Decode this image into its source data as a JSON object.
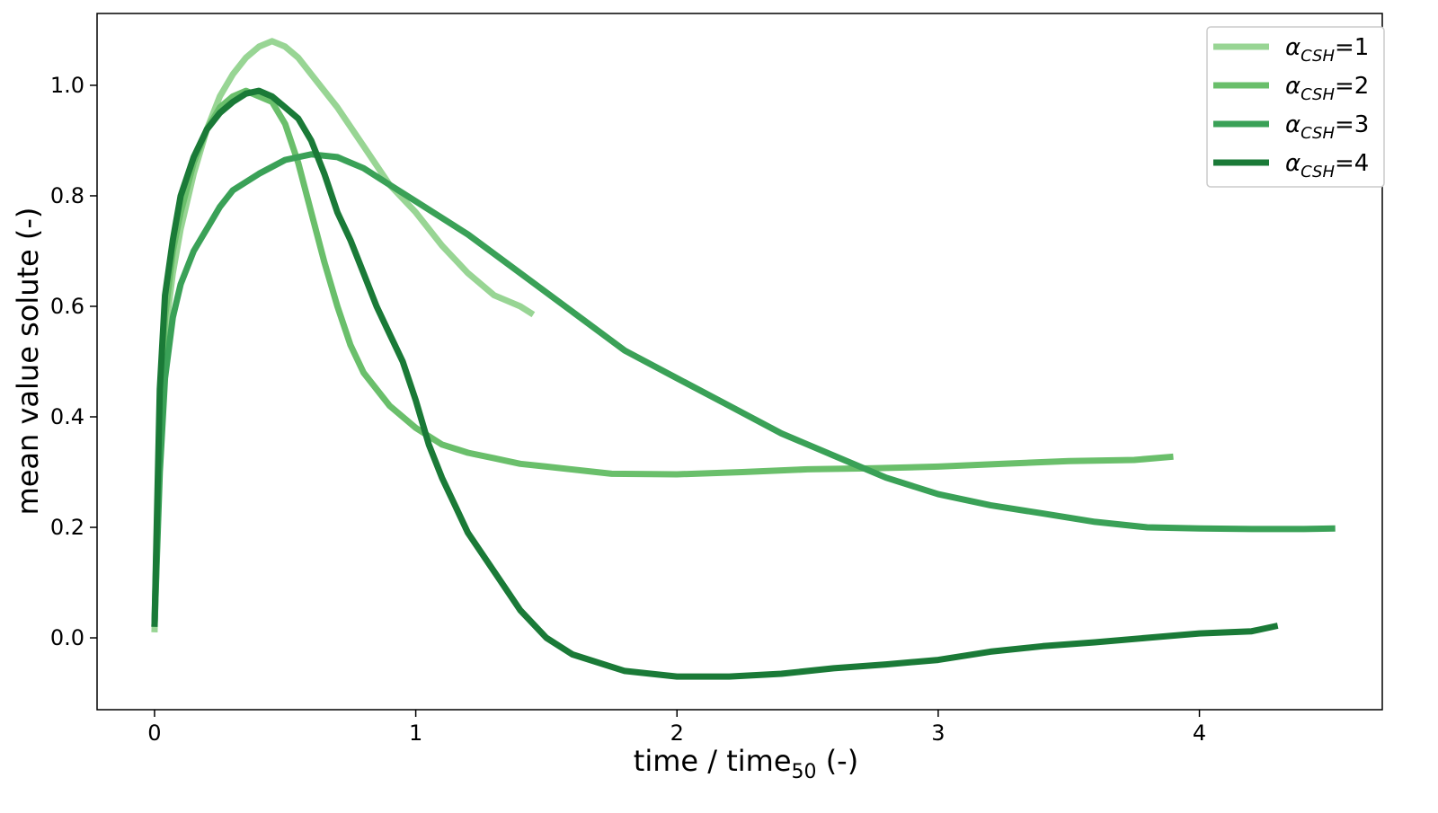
{
  "chart_data": {
    "type": "line",
    "xlabel": "time / time",
    "xlabel_subscript": "50",
    "xlabel_suffix": " (-)",
    "ylabel": "mean value solute (-)",
    "xlim": [
      -0.22,
      4.7
    ],
    "ylim": [
      -0.13,
      1.13
    ],
    "xticks": [
      0,
      1,
      2,
      3,
      4
    ],
    "yticks": [
      0.0,
      0.2,
      0.4,
      0.6,
      0.8,
      1.0
    ],
    "xtick_labels": [
      "0",
      "1",
      "2",
      "3",
      "4"
    ],
    "ytick_labels": [
      "0.0",
      "0.2",
      "0.4",
      "0.6",
      "0.8",
      "1.0"
    ],
    "grid": false,
    "legend_position": "top-right",
    "series": [
      {
        "name": "α_CSH=1",
        "label_base": "α",
        "label_sub": "CSH",
        "label_rest": "=1",
        "color": "#98d594",
        "x": [
          0.0,
          0.02,
          0.04,
          0.07,
          0.1,
          0.15,
          0.2,
          0.25,
          0.3,
          0.35,
          0.4,
          0.45,
          0.5,
          0.55,
          0.6,
          0.7,
          0.8,
          0.9,
          1.0,
          1.1,
          1.2,
          1.3,
          1.35,
          1.4,
          1.45
        ],
        "y": [
          0.01,
          0.35,
          0.55,
          0.66,
          0.74,
          0.84,
          0.92,
          0.98,
          1.02,
          1.05,
          1.07,
          1.08,
          1.07,
          1.05,
          1.02,
          0.96,
          0.89,
          0.82,
          0.77,
          0.71,
          0.66,
          0.62,
          0.61,
          0.6,
          0.585
        ]
      },
      {
        "name": "α_CSH=2",
        "label_base": "α",
        "label_sub": "CSH",
        "label_rest": "=2",
        "color": "#6abf6b",
        "x": [
          0.0,
          0.02,
          0.04,
          0.07,
          0.1,
          0.15,
          0.2,
          0.25,
          0.3,
          0.35,
          0.4,
          0.45,
          0.5,
          0.55,
          0.6,
          0.65,
          0.7,
          0.75,
          0.8,
          0.9,
          1.0,
          1.1,
          1.2,
          1.3,
          1.4,
          1.5,
          1.75,
          2.0,
          2.25,
          2.5,
          2.75,
          3.0,
          3.25,
          3.5,
          3.75,
          3.9
        ],
        "y": [
          0.02,
          0.4,
          0.58,
          0.7,
          0.77,
          0.86,
          0.92,
          0.96,
          0.98,
          0.99,
          0.98,
          0.97,
          0.93,
          0.86,
          0.77,
          0.68,
          0.6,
          0.53,
          0.48,
          0.42,
          0.38,
          0.35,
          0.335,
          0.325,
          0.315,
          0.31,
          0.297,
          0.296,
          0.3,
          0.305,
          0.307,
          0.31,
          0.315,
          0.32,
          0.322,
          0.328
        ]
      },
      {
        "name": "α_CSH=3",
        "label_base": "α",
        "label_sub": "CSH",
        "label_rest": "=3",
        "color": "#3aa157",
        "x": [
          0.0,
          0.02,
          0.04,
          0.07,
          0.1,
          0.15,
          0.2,
          0.25,
          0.3,
          0.4,
          0.5,
          0.6,
          0.7,
          0.8,
          0.9,
          1.0,
          1.2,
          1.4,
          1.6,
          1.8,
          2.0,
          2.2,
          2.4,
          2.6,
          2.8,
          3.0,
          3.2,
          3.4,
          3.6,
          3.8,
          4.0,
          4.2,
          4.4,
          4.52
        ],
        "y": [
          0.02,
          0.3,
          0.47,
          0.58,
          0.64,
          0.7,
          0.74,
          0.78,
          0.81,
          0.84,
          0.865,
          0.875,
          0.87,
          0.85,
          0.82,
          0.79,
          0.73,
          0.66,
          0.59,
          0.52,
          0.47,
          0.42,
          0.37,
          0.33,
          0.29,
          0.26,
          0.24,
          0.225,
          0.21,
          0.2,
          0.198,
          0.197,
          0.197,
          0.198
        ]
      },
      {
        "name": "α_CSH=4",
        "label_base": "α",
        "label_sub": "CSH",
        "label_rest": "=4",
        "color": "#1a7a37",
        "x": [
          0.0,
          0.02,
          0.04,
          0.07,
          0.1,
          0.15,
          0.2,
          0.25,
          0.3,
          0.35,
          0.4,
          0.45,
          0.5,
          0.55,
          0.6,
          0.65,
          0.7,
          0.75,
          0.8,
          0.85,
          0.9,
          0.95,
          1.0,
          1.05,
          1.1,
          1.15,
          1.2,
          1.3,
          1.4,
          1.5,
          1.6,
          1.8,
          2.0,
          2.2,
          2.4,
          2.6,
          2.8,
          3.0,
          3.2,
          3.4,
          3.6,
          3.8,
          4.0,
          4.2,
          4.3
        ],
        "y": [
          0.02,
          0.45,
          0.62,
          0.72,
          0.8,
          0.87,
          0.92,
          0.95,
          0.97,
          0.985,
          0.99,
          0.98,
          0.96,
          0.94,
          0.9,
          0.84,
          0.77,
          0.72,
          0.66,
          0.6,
          0.55,
          0.5,
          0.43,
          0.35,
          0.29,
          0.24,
          0.19,
          0.12,
          0.05,
          0.0,
          -0.03,
          -0.06,
          -0.07,
          -0.07,
          -0.065,
          -0.055,
          -0.048,
          -0.04,
          -0.025,
          -0.015,
          -0.008,
          0.0,
          0.008,
          0.012,
          0.022
        ]
      }
    ]
  }
}
